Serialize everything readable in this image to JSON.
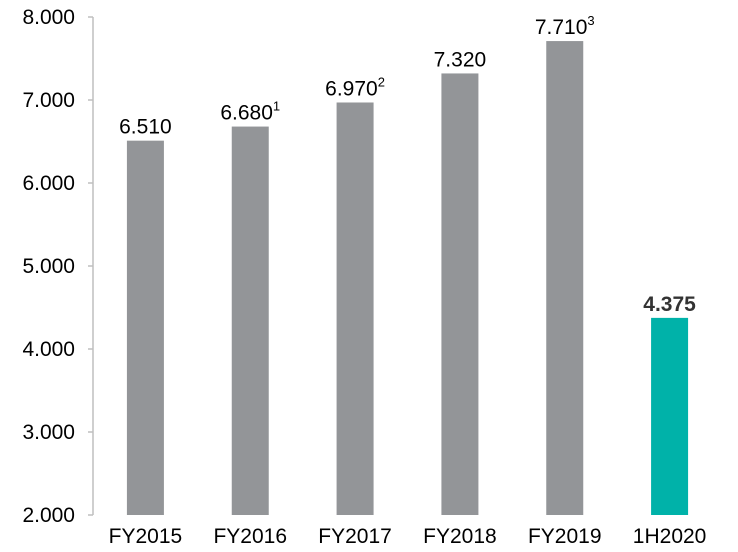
{
  "chart_data": {
    "type": "bar",
    "title": "",
    "xlabel": "",
    "ylabel": "",
    "ylim": [
      2000,
      8000
    ],
    "yticks": [
      {
        "value": 2000,
        "label": "2.000"
      },
      {
        "value": 3000,
        "label": "3.000"
      },
      {
        "value": 4000,
        "label": "4.000"
      },
      {
        "value": 5000,
        "label": "5.000"
      },
      {
        "value": 6000,
        "label": "6.000"
      },
      {
        "value": 7000,
        "label": "7.000"
      },
      {
        "value": 8000,
        "label": "8.000"
      }
    ],
    "grid": false,
    "categories": [
      "FY2015",
      "FY2016",
      "FY2017",
      "FY2018",
      "FY2019",
      "1H2020"
    ],
    "values": [
      6510,
      6680,
      6970,
      7320,
      7710,
      4375
    ],
    "data_labels": [
      "6.510",
      "6.680",
      "6.970",
      "7.320",
      "7.710",
      "4.375"
    ],
    "footnote_marks": [
      "",
      "1",
      "2",
      "",
      "3",
      ""
    ],
    "bold_labels": [
      false,
      false,
      false,
      false,
      false,
      true
    ],
    "colors": [
      "#939598",
      "#939598",
      "#939598",
      "#939598",
      "#939598",
      "#00b2a9"
    ],
    "axis_color": "#bfbfbf"
  }
}
